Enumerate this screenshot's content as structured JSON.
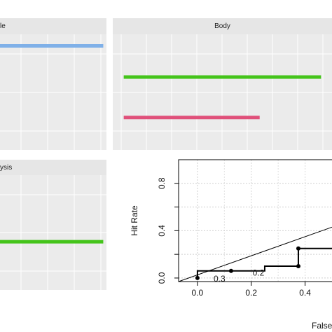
{
  "chart_data": [
    {
      "type": "bar",
      "panel": "top-left",
      "strip_label": "le",
      "series": [
        {
          "color": "#7fb0e8",
          "x_start": 0.0,
          "x_end": 0.97,
          "level": 0.9
        }
      ]
    },
    {
      "type": "bar",
      "panel": "top-right",
      "strip_label": "Body",
      "series": [
        {
          "color": "#44c41a",
          "x_start": 0.05,
          "x_end": 0.95,
          "level": 0.63
        },
        {
          "color": "#e0507a",
          "x_start": 0.05,
          "x_end": 0.67,
          "level": 0.28
        }
      ]
    },
    {
      "type": "bar",
      "panel": "bottom-left",
      "strip_label": "ysis",
      "series": [
        {
          "color": "#44c41a",
          "x_start": 0.0,
          "x_end": 0.97,
          "level": 0.42
        }
      ]
    },
    {
      "type": "line",
      "panel": "bottom-right",
      "xlabel": "False",
      "ylabel": "Hit Rate",
      "x_ticks": [
        "0.0",
        "0.2",
        "0.4"
      ],
      "y_ticks": [
        "0.0",
        "0.4",
        "0.8"
      ],
      "xlim": [
        -0.07,
        0.5
      ],
      "ylim": [
        -0.03,
        1.0
      ],
      "grid": true,
      "diagonal": {
        "x": [
          -0.07,
          0.5
        ],
        "y": [
          -0.03,
          0.43
        ]
      },
      "roc_step": {
        "x": [
          0.0,
          0.0,
          0.25,
          0.25,
          0.375,
          0.375,
          0.5
        ],
        "y": [
          0.0,
          0.06,
          0.06,
          0.1,
          0.1,
          0.25,
          0.25
        ]
      },
      "points": [
        {
          "x": 0.0,
          "y": 0.0
        },
        {
          "x": 0.125,
          "y": 0.06
        },
        {
          "x": 0.375,
          "y": 0.1
        },
        {
          "x": 0.375,
          "y": 0.25
        }
      ],
      "annotations": [
        {
          "text": "0.3",
          "x": 0.06,
          "y": -0.005
        },
        {
          "text": "0.2",
          "x": 0.205,
          "y": 0.045
        }
      ]
    }
  ]
}
